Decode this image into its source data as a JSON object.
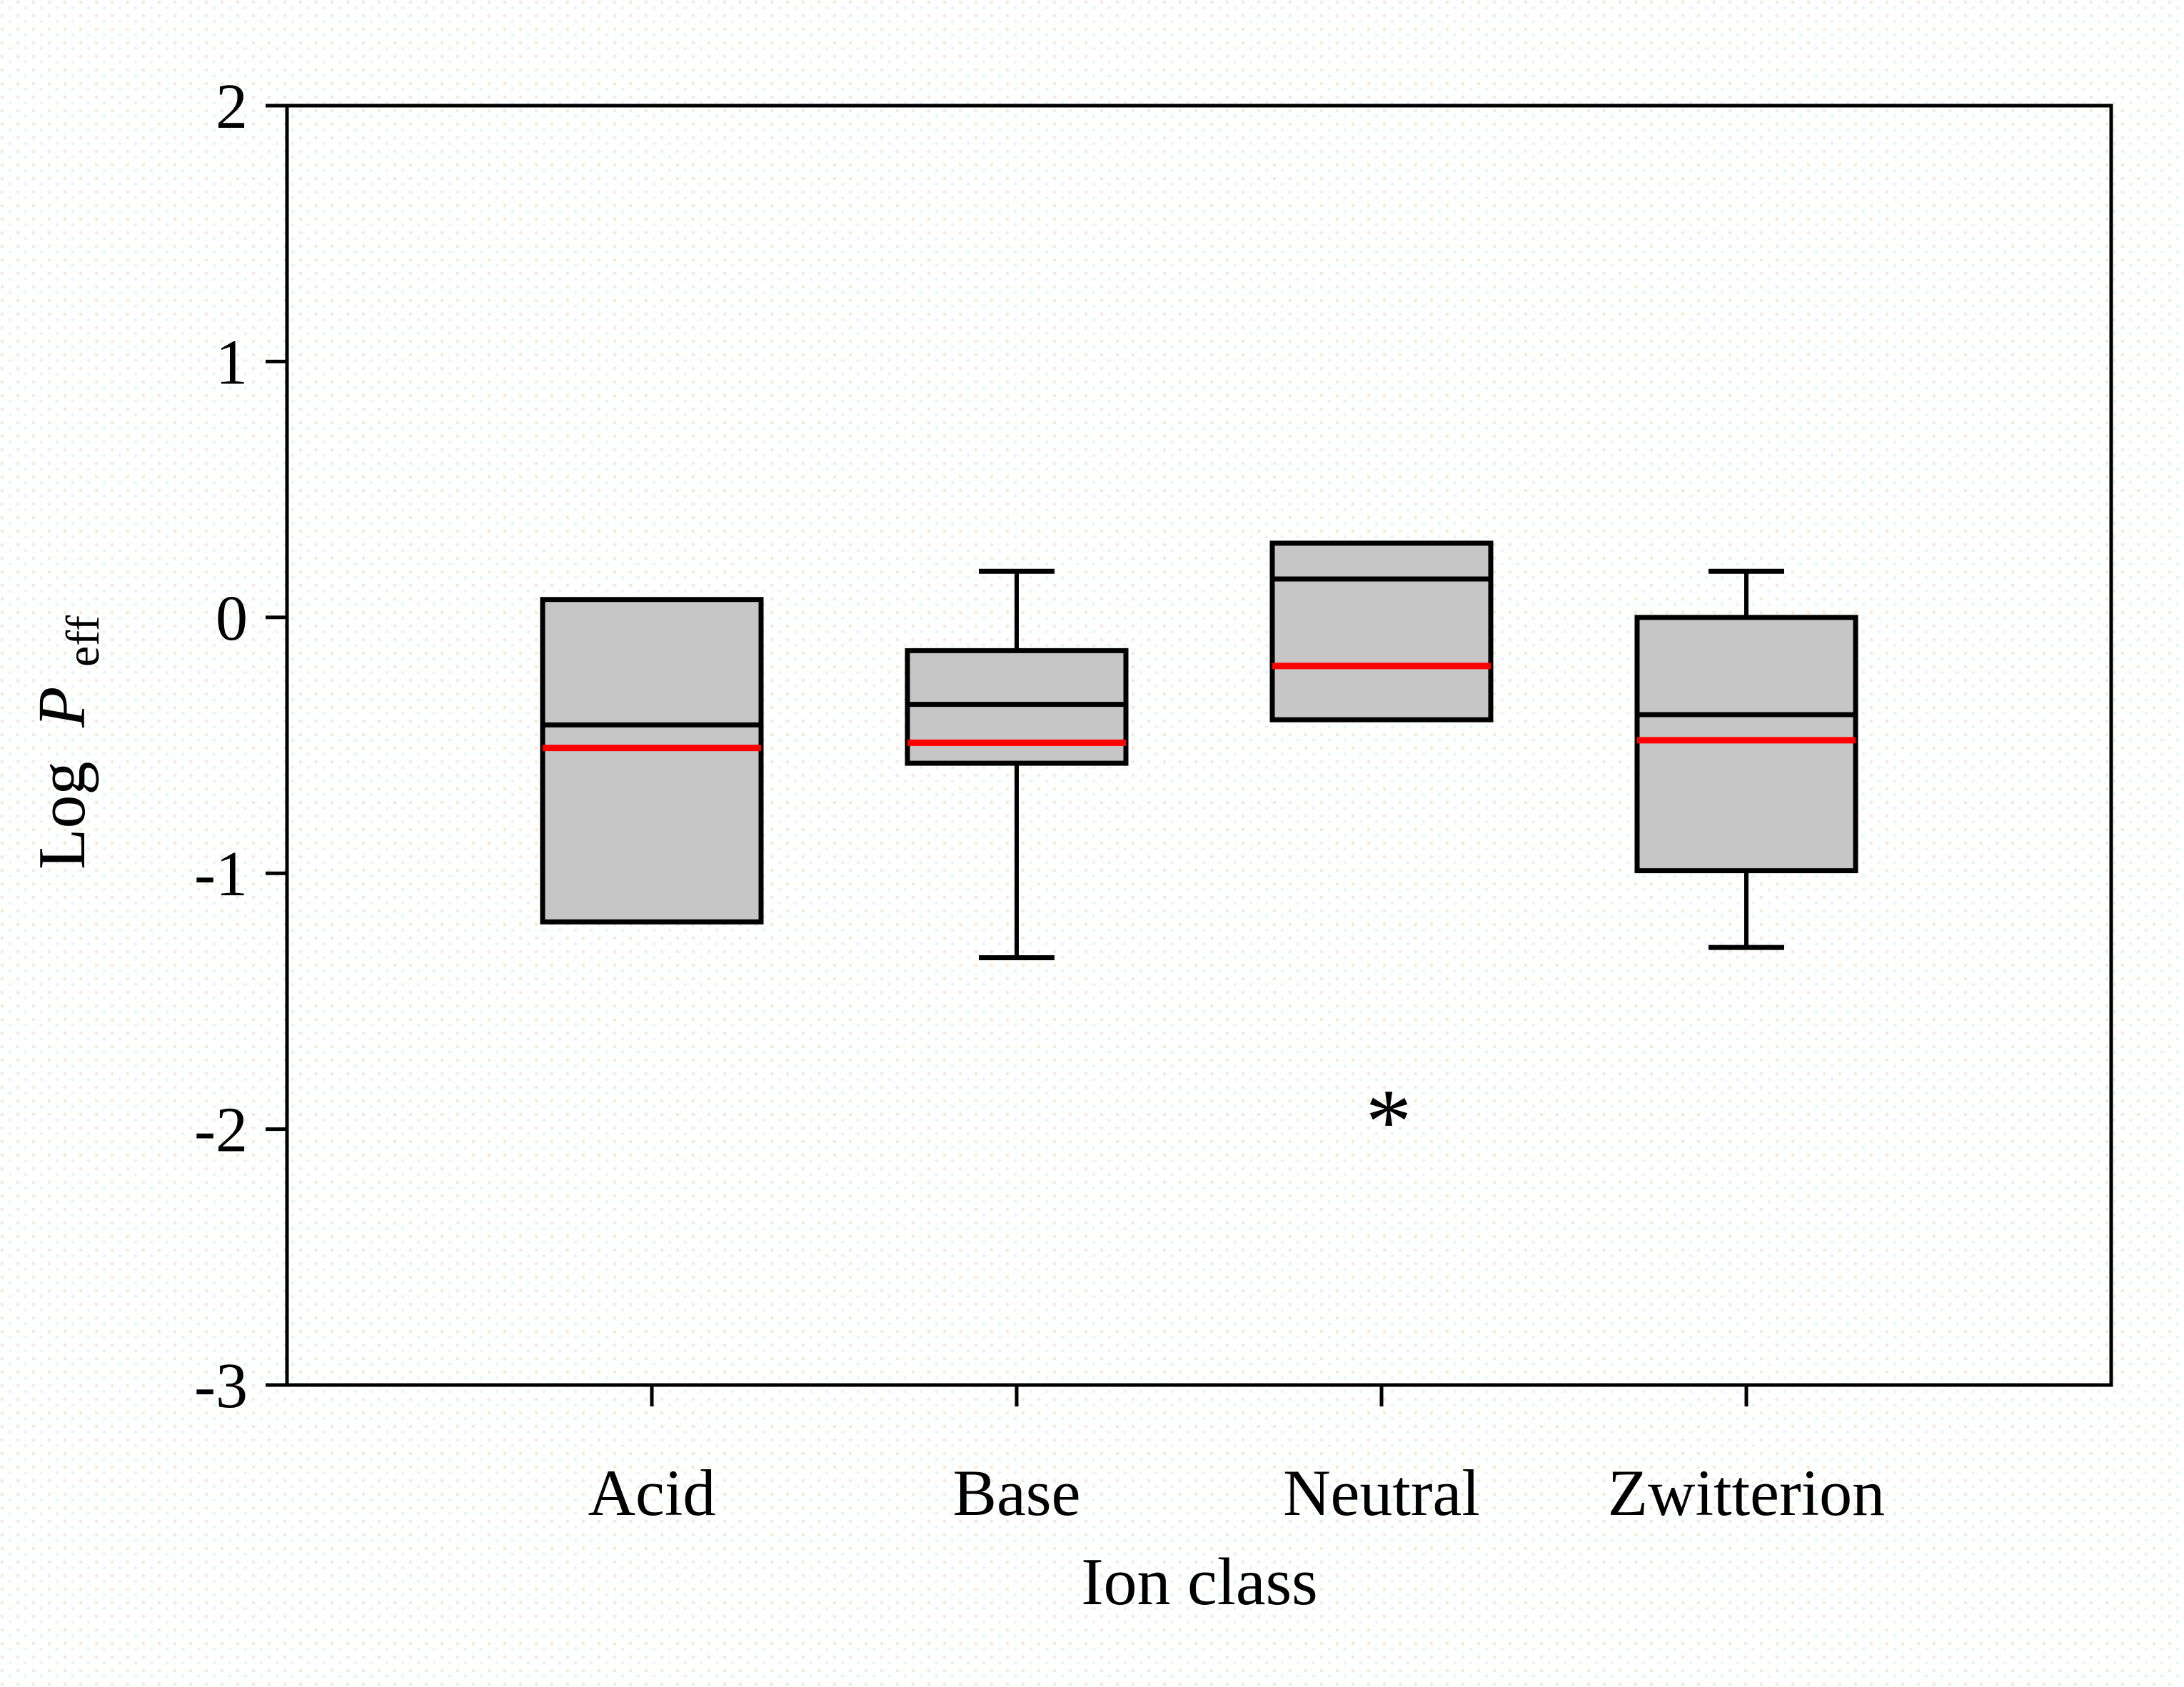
{
  "figure": {
    "background": "#ffffff",
    "frame_color": "#000000"
  },
  "chart_data": {
    "type": "box",
    "title": "",
    "xlabel": "Ion class",
    "ylabel": {
      "prefix": "Log",
      "symbol": "P",
      "subscript": "eff"
    },
    "ylim": [
      -3,
      2
    ],
    "yticks": [
      2,
      1,
      0,
      -1,
      -2,
      -3
    ],
    "ytick_labels": [
      "2",
      "1",
      "0",
      "-1",
      "-2",
      "-3"
    ],
    "categories": [
      "Acid",
      "Base",
      "Neutral",
      "Zwitterion"
    ],
    "grid": false,
    "legend": "none",
    "boxes": [
      {
        "label": "Acid",
        "q1": -1.19,
        "median": -0.42,
        "mean": -0.51,
        "q3": 0.07,
        "whisker_low": null,
        "whisker_high": null,
        "outliers": []
      },
      {
        "label": "Base",
        "q1": -0.57,
        "median": -0.34,
        "mean": -0.49,
        "q3": -0.13,
        "whisker_low": -1.33,
        "whisker_high": 0.18,
        "outliers": []
      },
      {
        "label": "Neutral",
        "q1": -0.4,
        "median": 0.15,
        "mean": -0.19,
        "q3": 0.29,
        "whisker_low": null,
        "whisker_high": null,
        "outliers": [
          -1.89
        ]
      },
      {
        "label": "Zwitterion",
        "q1": -0.99,
        "median": -0.38,
        "mean": -0.48,
        "q3": 0.0,
        "whisker_low": -1.29,
        "whisker_high": 0.18,
        "outliers": []
      }
    ],
    "outlier_marker": "*",
    "colors": {
      "box_fill": "#c6c6c6",
      "box_edge": "#000000",
      "median_line": "#000000",
      "mean_line": "#ff0000",
      "whisker": "#000000",
      "text": "#000000"
    }
  }
}
